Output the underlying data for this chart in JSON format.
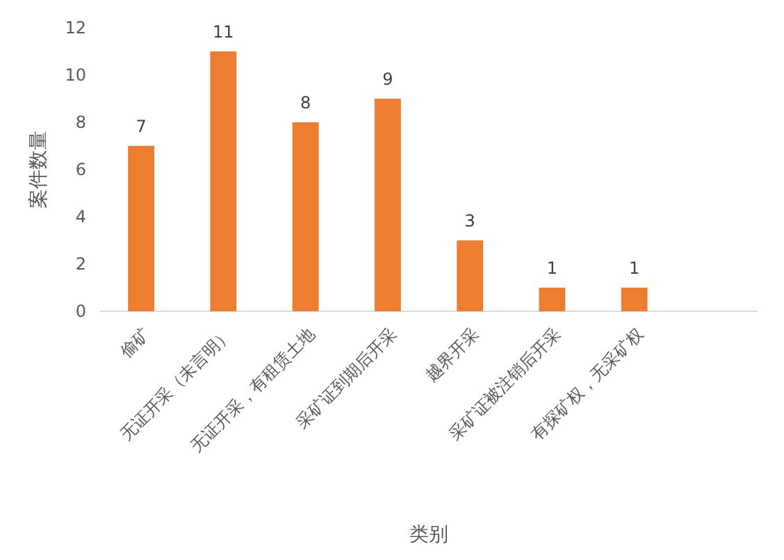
{
  "chart_data": {
    "type": "bar",
    "xlabel": "类别",
    "ylabel": "案件数量",
    "categories": [
      "偷矿",
      "无证开采（未言明）",
      "无证开采，有租赁土地",
      "采矿证到期后开采",
      "越界开采",
      "采矿证被注销后开采",
      "有探矿权，无采矿权",
      null
    ],
    "values": [
      7,
      11,
      8,
      9,
      3,
      1,
      1,
      null
    ],
    "color": "#ed7d31",
    "ylim": [
      0,
      12
    ],
    "yticks": [
      0,
      2,
      4,
      6,
      8,
      10,
      12
    ],
    "grid": false,
    "data_labels": true
  }
}
